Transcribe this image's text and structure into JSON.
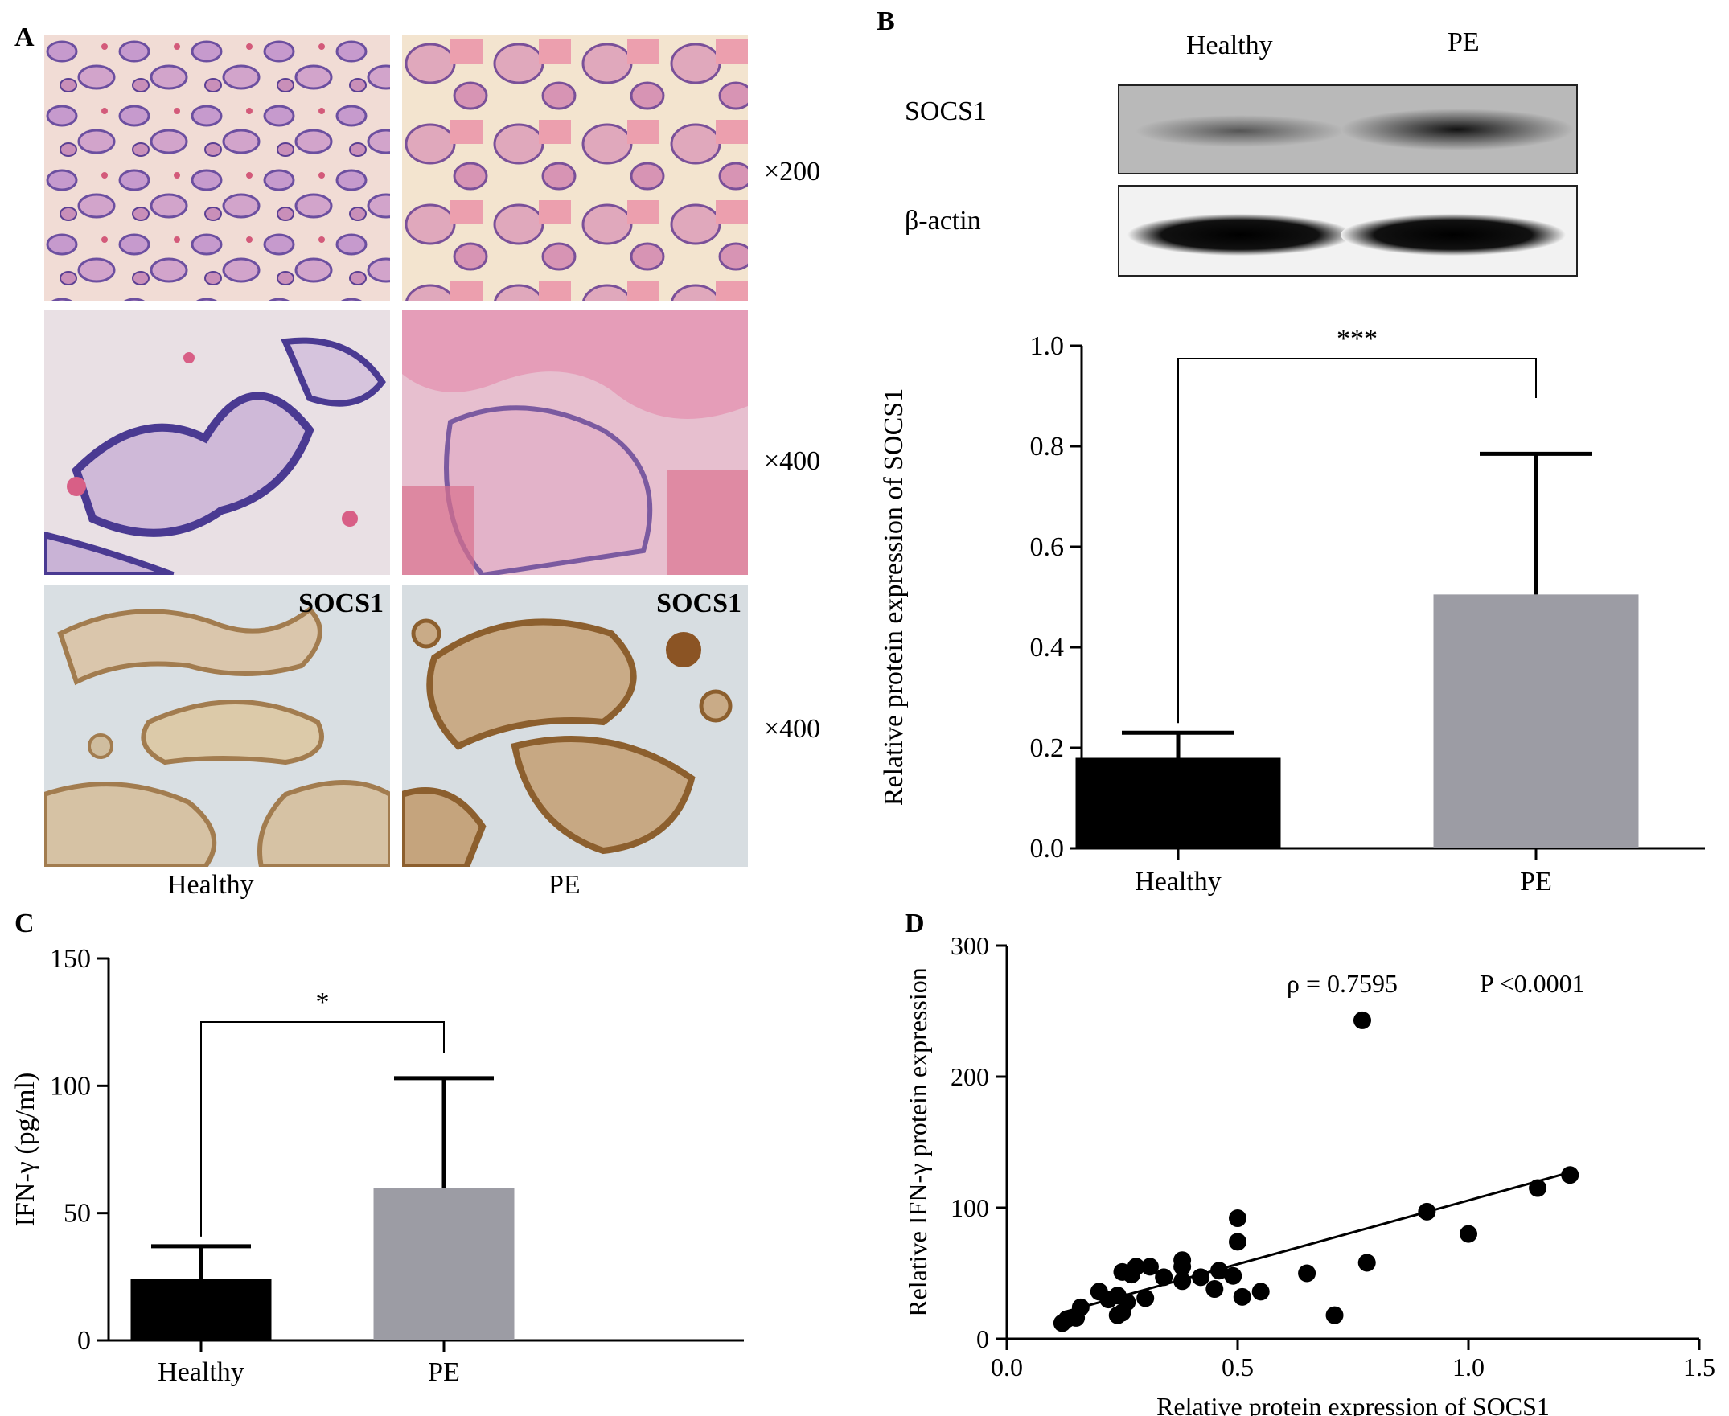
{
  "panels": {
    "A": {
      "label": "A",
      "magnifications": [
        "×200",
        "×400",
        "×400"
      ],
      "ihc_stain_label": "SOCS1",
      "columns": [
        "Healthy",
        "PE"
      ]
    },
    "B": {
      "label": "B",
      "blot": {
        "lanes": [
          "Healthy",
          "PE"
        ],
        "rows": [
          "SOCS1",
          "β-actin"
        ]
      }
    },
    "C": {
      "label": "C"
    },
    "D": {
      "label": "D"
    }
  },
  "chart_data": [
    {
      "id": "B",
      "type": "bar",
      "categories": [
        "Healthy",
        "PE"
      ],
      "values": [
        0.18,
        0.505
      ],
      "errors": [
        0.05,
        0.28
      ],
      "colors": [
        "#000000",
        "#9c9ca4"
      ],
      "ylabel": "Relative protein expression of SOCS1",
      "ylim": [
        0,
        1.0
      ],
      "yticks": [
        0.0,
        0.2,
        0.4,
        0.6,
        0.8,
        1.0
      ],
      "ytick_labels": [
        "0.0",
        "0.2",
        "0.4",
        "0.6",
        "0.8",
        "1.0"
      ],
      "significance": "***"
    },
    {
      "id": "C",
      "type": "bar",
      "categories": [
        "Healthy",
        "PE"
      ],
      "values": [
        24,
        60
      ],
      "errors": [
        13,
        43
      ],
      "colors": [
        "#000000",
        "#9c9ca4"
      ],
      "ylabel": "IFN-γ (pg/ml)",
      "ylim": [
        0,
        150
      ],
      "yticks": [
        0,
        50,
        100,
        150
      ],
      "ytick_labels": [
        "0",
        "50",
        "100",
        "150"
      ],
      "significance": "*"
    },
    {
      "id": "D",
      "type": "scatter",
      "xlabel": "Relative protein expression of SOCS1",
      "ylabel": "Relative IFN-γ protein expression",
      "xlim": [
        0,
        1.5
      ],
      "ylim": [
        0,
        300
      ],
      "xticks": [
        0.0,
        0.5,
        1.0,
        1.5
      ],
      "xtick_labels": [
        "0.0",
        "0.5",
        "1.0",
        "1.5"
      ],
      "yticks": [
        0,
        100,
        200,
        300
      ],
      "ytick_labels": [
        "0",
        "100",
        "200",
        "300"
      ],
      "annotations": [
        "ρ = 0.7595",
        "P <0.0001"
      ],
      "trendline": {
        "x": [
          0.12,
          1.22
        ],
        "y": [
          20,
          127
        ]
      },
      "points": [
        [
          0.12,
          12
        ],
        [
          0.13,
          15
        ],
        [
          0.15,
          16
        ],
        [
          0.16,
          24
        ],
        [
          0.2,
          36
        ],
        [
          0.22,
          30
        ],
        [
          0.24,
          18
        ],
        [
          0.24,
          33
        ],
        [
          0.25,
          20
        ],
        [
          0.25,
          51
        ],
        [
          0.26,
          28
        ],
        [
          0.27,
          49
        ],
        [
          0.28,
          55
        ],
        [
          0.3,
          31
        ],
        [
          0.31,
          55
        ],
        [
          0.34,
          47
        ],
        [
          0.38,
          44
        ],
        [
          0.38,
          55
        ],
        [
          0.38,
          60
        ],
        [
          0.42,
          47
        ],
        [
          0.45,
          38
        ],
        [
          0.46,
          52
        ],
        [
          0.49,
          48
        ],
        [
          0.51,
          32
        ],
        [
          0.5,
          74
        ],
        [
          0.5,
          92
        ],
        [
          0.55,
          36
        ],
        [
          0.65,
          50
        ],
        [
          0.71,
          18
        ],
        [
          0.77,
          243
        ],
        [
          0.78,
          58
        ],
        [
          0.91,
          97
        ],
        [
          1.0,
          80
        ],
        [
          1.15,
          115
        ],
        [
          1.22,
          125
        ]
      ]
    }
  ]
}
